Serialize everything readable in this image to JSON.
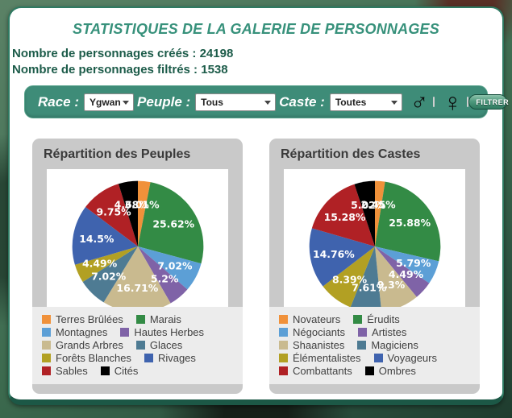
{
  "theme": {
    "teal": "#37917B",
    "dark_teal": "#1D5C4A",
    "bar_green": "#3E8C78",
    "card_gray": "#C9C9C9",
    "legend_gray": "#ECECEC"
  },
  "header": {
    "title": "STATISTIQUES DE LA GALERIE DE PERSONNAGES"
  },
  "stats": {
    "created_label": "Nombre de personnages créés :",
    "created_value": "24198",
    "filtered_label": "Nombre de personnages filtrés :",
    "filtered_value": "1538"
  },
  "filter_bar": {
    "race_label": "Race :",
    "race_value": "Ygwan",
    "peuple_label": "Peuple :",
    "peuple_value": "Tous",
    "caste_label": "Caste :",
    "caste_value": "Toutes",
    "male_symbol": "♂",
    "female_symbol": "♀",
    "male_checked": false,
    "female_checked": false,
    "filter_button_label": "FILTRER"
  },
  "chart_data": [
    {
      "type": "pie",
      "title": "Répartition des Peuples",
      "labels": [
        "Terres Brûlées",
        "Marais",
        "Montagnes",
        "Hautes Herbes",
        "Grands Arbres",
        "Glaces",
        "Forêts Blanches",
        "Rivages",
        "Sables",
        "Cités"
      ],
      "values": [
        3.01,
        25.62,
        7.02,
        5.2,
        16.71,
        7.02,
        4.49,
        14.5,
        9.75,
        4.68
      ],
      "display_values": [
        "3.01%",
        "25.62%",
        "7.02%",
        "5.2%",
        "16.71%",
        "7.02%",
        "4.49%",
        "14.5%",
        "9.75%",
        "4.68%"
      ],
      "colors": [
        "#F0913A",
        "#338B45",
        "#5C9FD6",
        "#7F63A7",
        "#C9BA8F",
        "#4E7B93",
        "#B2A023",
        "#3F63AE",
        "#B02125",
        "#000000"
      ],
      "start_angle": "top",
      "direction": "clockwise",
      "legend_position": "bottom",
      "legend_columns": 2
    },
    {
      "type": "pie",
      "title": "Répartition des Castes",
      "labels": [
        "Novateurs",
        "Érudits",
        "Négociants",
        "Artistes",
        "Shaanistes",
        "Magiciens",
        "Élémentalistes",
        "Voyageurs",
        "Combattants",
        "Ombres"
      ],
      "values": [
        2.45,
        25.88,
        5.79,
        4.49,
        9.3,
        7.61,
        8.39,
        14.76,
        15.28,
        5.02
      ],
      "display_values": [
        "2.45%",
        "25.88%",
        "5.79%",
        "4.49%",
        "9.3%",
        "7.61%",
        "8.39%",
        "14.76%",
        "15.28%",
        "5.02%"
      ],
      "colors": [
        "#F0913A",
        "#338B45",
        "#5C9FD6",
        "#7F63A7",
        "#C9BA8F",
        "#4E7B93",
        "#B2A023",
        "#3F63AE",
        "#B02125",
        "#000000"
      ],
      "start_angle": "top",
      "direction": "clockwise",
      "legend_position": "bottom",
      "legend_columns": 2
    }
  ]
}
